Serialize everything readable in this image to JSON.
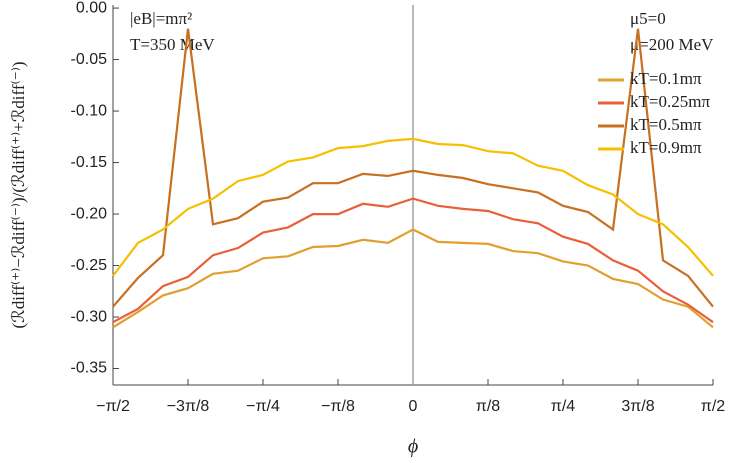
{
  "chart_data": {
    "type": "line",
    "x_label": "ϕ",
    "y_label": "(ℛdiff⁽⁺⁾−ℛdiff⁽⁻⁾)/(ℛdiff⁽⁺⁾+ℛdiff⁽⁻⁾)",
    "annotations": [
      "|eB|=mπ²",
      "T=350 MeV",
      "μ5=0",
      "μ=200 MeV"
    ],
    "x": [
      -1.5708,
      -1.4399,
      -1.309,
      -1.1781,
      -1.0472,
      -0.9163,
      -0.7854,
      -0.6545,
      -0.5236,
      -0.3927,
      -0.2618,
      -0.1309,
      0,
      0.1309,
      0.2618,
      0.3927,
      0.5236,
      0.6545,
      0.7854,
      0.9163,
      1.0472,
      1.1781,
      1.309,
      1.4399,
      1.5708
    ],
    "series": [
      {
        "name": "kT=0.1mπ",
        "color": "#e0a030",
        "values": [
          -0.31,
          -0.295,
          -0.279,
          -0.272,
          -0.258,
          -0.255,
          -0.243,
          -0.241,
          -0.232,
          -0.231,
          -0.225,
          -0.228,
          -0.215,
          -0.227,
          -0.228,
          -0.229,
          -0.236,
          -0.238,
          -0.246,
          -0.25,
          -0.263,
          -0.268,
          -0.283,
          -0.29,
          -0.31
        ]
      },
      {
        "name": "kT=0.25mπ",
        "color": "#e8603a",
        "values": [
          -0.305,
          -0.292,
          -0.27,
          -0.261,
          -0.24,
          -0.233,
          -0.218,
          -0.213,
          -0.2,
          -0.2,
          -0.19,
          -0.193,
          -0.185,
          -0.192,
          -0.195,
          -0.197,
          -0.205,
          -0.209,
          -0.222,
          -0.229,
          -0.245,
          -0.255,
          -0.275,
          -0.288,
          -0.305
        ]
      },
      {
        "name": "kT=0.5mπ",
        "color": "#c87020",
        "values": [
          -0.29,
          -0.262,
          -0.24,
          -0.02,
          -0.21,
          -0.204,
          -0.188,
          -0.184,
          -0.17,
          -0.17,
          -0.161,
          -0.163,
          -0.158,
          -0.162,
          -0.165,
          -0.171,
          -0.175,
          -0.179,
          -0.192,
          -0.198,
          -0.215,
          -0.02,
          -0.245,
          -0.26,
          -0.29
        ]
      },
      {
        "name": "kT=0.9mπ",
        "color": "#f5c000",
        "values": [
          -0.26,
          -0.228,
          -0.215,
          -0.195,
          -0.185,
          -0.168,
          -0.162,
          -0.149,
          -0.145,
          -0.136,
          -0.134,
          -0.129,
          -0.127,
          -0.132,
          -0.133,
          -0.139,
          -0.141,
          -0.153,
          -0.158,
          -0.172,
          -0.181,
          -0.2,
          -0.21,
          -0.232,
          -0.26
        ]
      }
    ],
    "xlim": [
      -1.5708,
      1.5708
    ],
    "ylim": [
      -0.366,
      0.003
    ],
    "xticks": [
      {
        "value": -1.5708,
        "label": "−π/2"
      },
      {
        "value": -1.1781,
        "label": "−3π/8"
      },
      {
        "value": -0.7854,
        "label": "−π/4"
      },
      {
        "value": -0.3927,
        "label": "−π/8"
      },
      0,
      {
        "value": 0.3927,
        "label": "π/8"
      },
      {
        "value": 0.7854,
        "label": "π/4"
      },
      {
        "value": 1.1781,
        "label": "3π/8"
      },
      {
        "value": 1.5708,
        "label": "π/2"
      }
    ],
    "yticks": [
      {
        "value": 0,
        "label": "0.00"
      },
      {
        "value": -0.05,
        "label": "-0.05"
      },
      {
        "value": -0.1,
        "label": "-0.10"
      },
      {
        "value": -0.15,
        "label": "-0.15"
      },
      {
        "value": -0.2,
        "label": "-0.20"
      },
      {
        "value": -0.25,
        "label": "-0.25"
      },
      {
        "value": -0.3,
        "label": "-0.30"
      },
      {
        "value": -0.35,
        "label": "-0.35"
      }
    ],
    "zero_line": true,
    "legend": "upper right"
  }
}
